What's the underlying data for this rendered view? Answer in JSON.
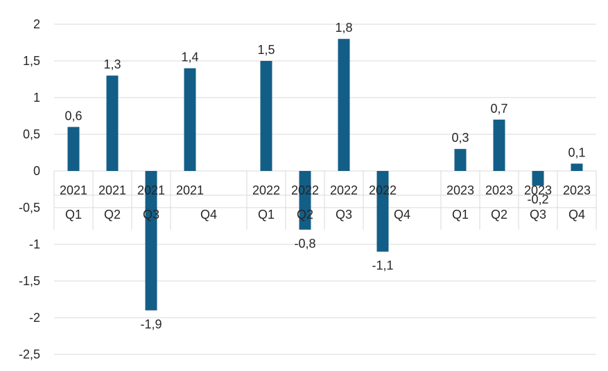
{
  "chart_data": {
    "type": "bar",
    "title": "",
    "xlabel": "",
    "ylabel": "",
    "ylim": [
      -2.5,
      2
    ],
    "yticks": [
      "2",
      "1,5",
      "1",
      "0,5",
      "0",
      "-0,5",
      "-1",
      "-1,5",
      "-2",
      "-2,5"
    ],
    "ytick_values": [
      2,
      1.5,
      1,
      0.5,
      0,
      -0.5,
      -1,
      -1.5,
      -2,
      -2.5
    ],
    "grid": true,
    "bar_color": "#135e87",
    "categories": [
      {
        "year": "2021",
        "quarter": "Q1",
        "value": 0.6,
        "label": "0,6"
      },
      {
        "year": "2021",
        "quarter": "Q2",
        "value": 1.3,
        "label": "1,3"
      },
      {
        "year": "2021",
        "quarter": "Q3",
        "value": -1.9,
        "label": "-1,9"
      },
      {
        "year": "2021",
        "quarter": "Q4",
        "value": 1.4,
        "label": "1,4"
      },
      {
        "year": "2022",
        "quarter": "Q1",
        "value": 1.5,
        "label": "1,5"
      },
      {
        "year": "2022",
        "quarter": "Q2",
        "value": -0.8,
        "label": "-0,8"
      },
      {
        "year": "2022",
        "quarter": "Q3",
        "value": 1.8,
        "label": "1,8"
      },
      {
        "year": "2022",
        "quarter": "Q4",
        "value": -1.1,
        "label": "-1,1"
      },
      {
        "year": "2023",
        "quarter": "Q1",
        "value": 0.3,
        "label": "0,3"
      },
      {
        "year": "2023",
        "quarter": "Q2",
        "value": 0.7,
        "label": "0,7"
      },
      {
        "year": "2023",
        "quarter": "Q3",
        "value": -0.2,
        "label": "-0,2"
      },
      {
        "year": "2023",
        "quarter": "Q4",
        "value": 0.1,
        "label": "0,1"
      }
    ]
  }
}
